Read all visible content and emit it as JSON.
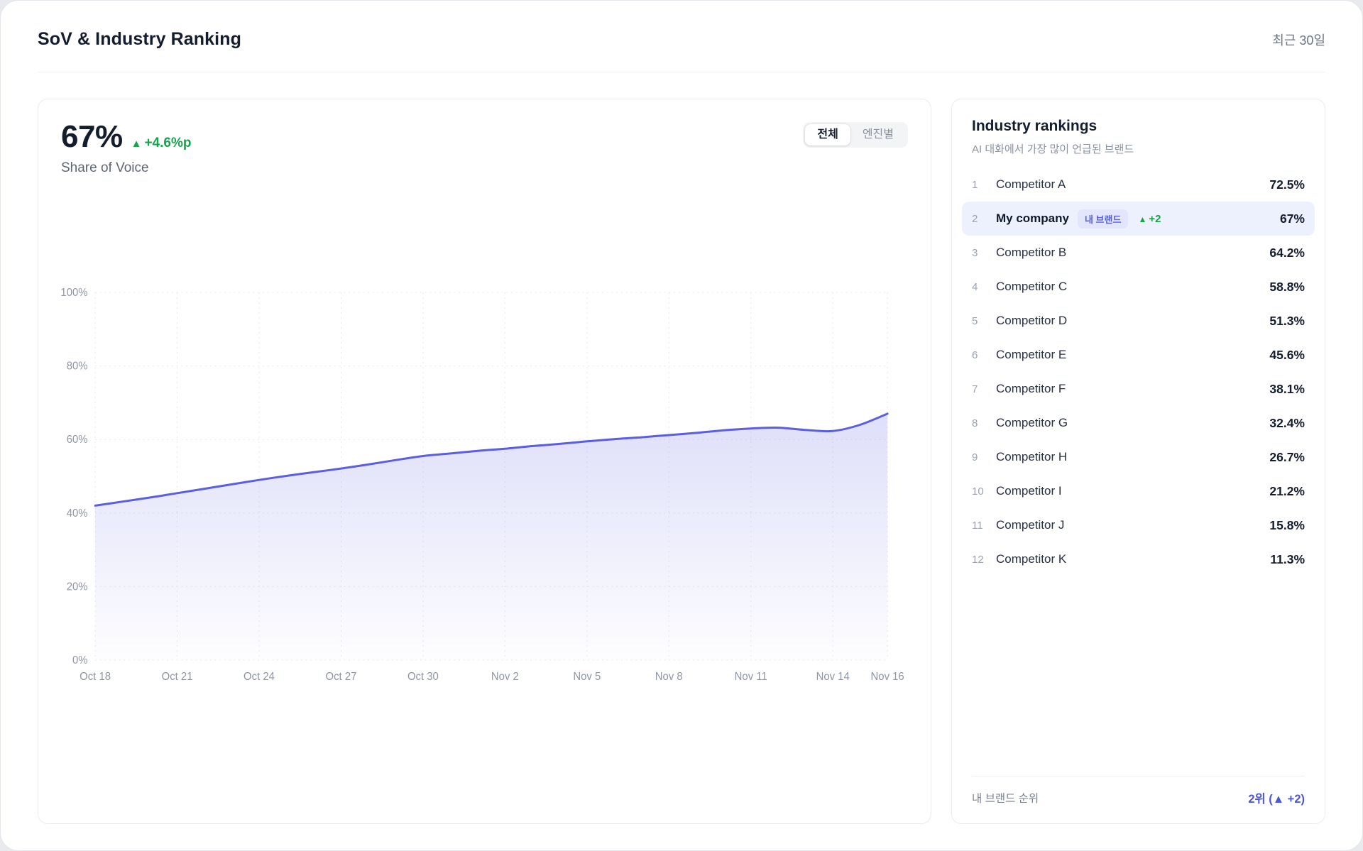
{
  "header": {
    "title": "SoV & Industry Ranking",
    "period_label": "최근 30일"
  },
  "sov": {
    "value": "67%",
    "delta": "+4.6%p",
    "delta_direction": "up",
    "label": "Share of Voice",
    "toggle": {
      "options": [
        "전체",
        "엔진별"
      ],
      "selected": "전체"
    }
  },
  "icons": {
    "up_triangle": "▲"
  },
  "chart_data": {
    "type": "area",
    "title": "Share of Voice trend (last 30 days)",
    "x": [
      "Oct 18",
      "Oct 19",
      "Oct 20",
      "Oct 21",
      "Oct 22",
      "Oct 23",
      "Oct 24",
      "Oct 25",
      "Oct 26",
      "Oct 27",
      "Oct 28",
      "Oct 29",
      "Oct 30",
      "Oct 31",
      "Nov 1",
      "Nov 2",
      "Nov 3",
      "Nov 4",
      "Nov 5",
      "Nov 6",
      "Nov 7",
      "Nov 8",
      "Nov 9",
      "Nov 10",
      "Nov 11",
      "Nov 12",
      "Nov 13",
      "Nov 14",
      "Nov 15",
      "Nov 16"
    ],
    "values": [
      42.0,
      43.1,
      44.2,
      45.4,
      46.6,
      47.8,
      49.0,
      50.1,
      51.1,
      52.1,
      53.2,
      54.4,
      55.5,
      56.2,
      56.9,
      57.5,
      58.2,
      58.8,
      59.5,
      60.1,
      60.6,
      61.2,
      61.8,
      62.5,
      63.0,
      63.2,
      62.6,
      62.3,
      64.0,
      67.0
    ],
    "x_tick_labels": [
      "Oct 18",
      "Oct 21",
      "Oct 24",
      "Oct 27",
      "Oct 30",
      "Nov 2",
      "Nov 5",
      "Nov 8",
      "Nov 11",
      "Nov 14",
      "Nov 16"
    ],
    "x_tick_indices": [
      0,
      3,
      6,
      9,
      12,
      15,
      18,
      21,
      24,
      27,
      29
    ],
    "y_tick_labels": [
      "0%",
      "20%",
      "40%",
      "60%",
      "80%",
      "100%"
    ],
    "y_tick_values": [
      0,
      20,
      40,
      60,
      80,
      100
    ],
    "ylim": [
      0,
      100
    ],
    "grid": true,
    "legend": "none",
    "line_color": "#5b5ee1",
    "area_color": "#5b5ee1",
    "grid_color": "#e6e8ed",
    "axis_label_color": "#8e96a3"
  },
  "rankings": {
    "title": "Industry rankings",
    "subtitle": "AI 대화에서 가장 많이 언급된 브랜드",
    "items": [
      {
        "rank": "1",
        "name": "Competitor A",
        "value": "72.5%",
        "is_mine": false
      },
      {
        "rank": "2",
        "name": "My company",
        "value": "67%",
        "is_mine": true,
        "badge": "내 브랜드",
        "delta": "+2"
      },
      {
        "rank": "3",
        "name": "Competitor B",
        "value": "64.2%",
        "is_mine": false
      },
      {
        "rank": "4",
        "name": "Competitor C",
        "value": "58.8%",
        "is_mine": false
      },
      {
        "rank": "5",
        "name": "Competitor D",
        "value": "51.3%",
        "is_mine": false
      },
      {
        "rank": "6",
        "name": "Competitor E",
        "value": "45.6%",
        "is_mine": false
      },
      {
        "rank": "7",
        "name": "Competitor F",
        "value": "38.1%",
        "is_mine": false
      },
      {
        "rank": "8",
        "name": "Competitor G",
        "value": "32.4%",
        "is_mine": false
      },
      {
        "rank": "9",
        "name": "Competitor H",
        "value": "26.7%",
        "is_mine": false
      },
      {
        "rank": "10",
        "name": "Competitor I",
        "value": "21.2%",
        "is_mine": false
      },
      {
        "rank": "11",
        "name": "Competitor J",
        "value": "15.8%",
        "is_mine": false
      },
      {
        "rank": "12",
        "name": "Competitor K",
        "value": "11.3%",
        "is_mine": false
      }
    ],
    "footer": {
      "label": "내 브랜드 순위",
      "value": "2위 (▲ +2)"
    }
  }
}
